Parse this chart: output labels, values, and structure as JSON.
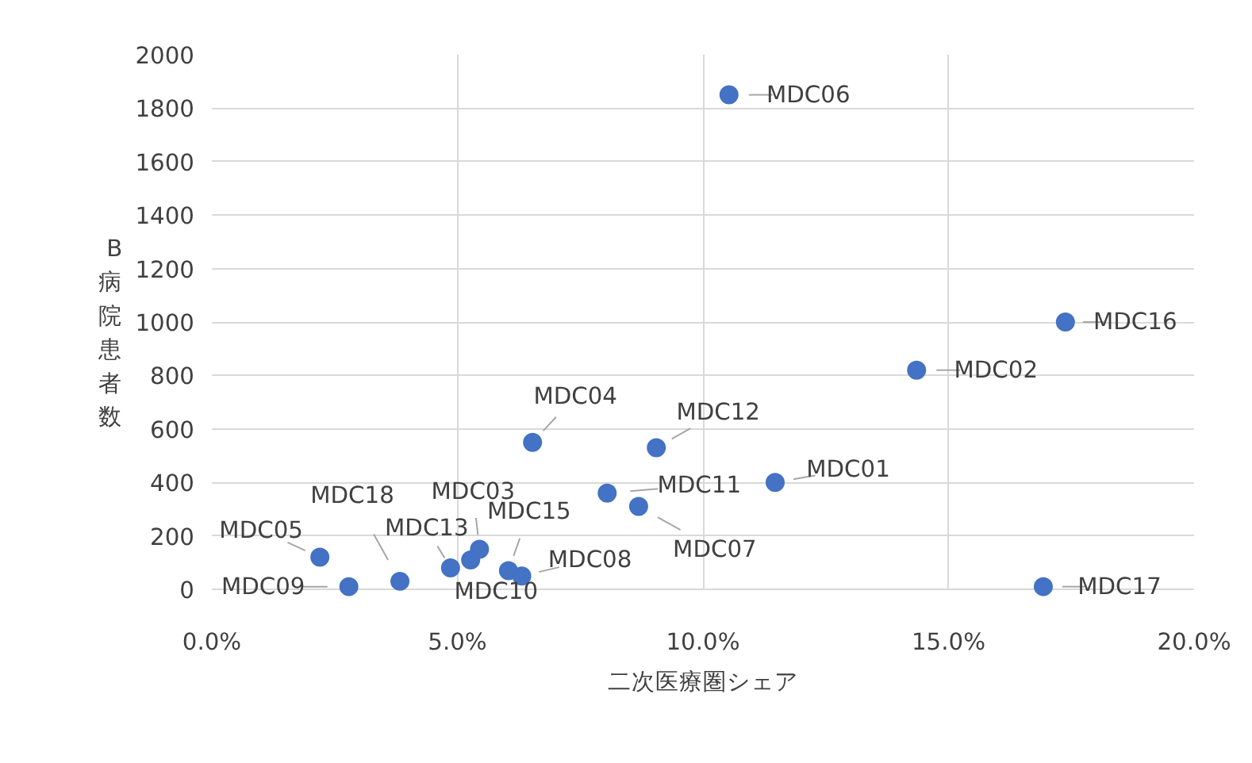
{
  "chart_data": {
    "type": "scatter",
    "xlabel": "二次医療圏シェア",
    "ylabel": "B病院患者数",
    "x": [
      10.53,
      17.38,
      14.35,
      11.47,
      9.05,
      6.53,
      8.05,
      8.69,
      16.93,
      2.2,
      2.79,
      3.83,
      4.86,
      5.45,
      5.27,
      6.04,
      6.31
    ],
    "values": [
      1850,
      1000,
      820,
      400,
      530,
      550,
      360,
      310,
      10,
      120,
      10,
      30,
      80,
      150,
      110,
      70,
      50
    ],
    "value_labels": [
      "MDC06",
      "MDC16",
      "MDC02",
      "MDC01",
      "MDC12",
      "MDC04",
      "MDC11",
      "MDC07",
      "MDC17",
      "MDC05",
      "MDC09",
      "MDC18",
      "MDC13",
      "MDC03",
      "MDC10",
      "MDC15",
      "MDC08"
    ],
    "color": "#4472c4",
    "marker": "circle",
    "xlim": [
      0,
      20
    ],
    "xticks": [
      {
        "value": 0,
        "label": "0.0%"
      },
      {
        "value": 5,
        "label": "5.0%"
      },
      {
        "value": 10,
        "label": "10.0%"
      },
      {
        "value": 15,
        "label": "15.0%"
      },
      {
        "value": 20,
        "label": "20.0%"
      }
    ],
    "ylim": [
      0,
      2000
    ],
    "yticks": [
      0,
      200,
      400,
      600,
      800,
      1000,
      1200,
      1400,
      1600,
      1800,
      2000
    ],
    "grid": true
  }
}
